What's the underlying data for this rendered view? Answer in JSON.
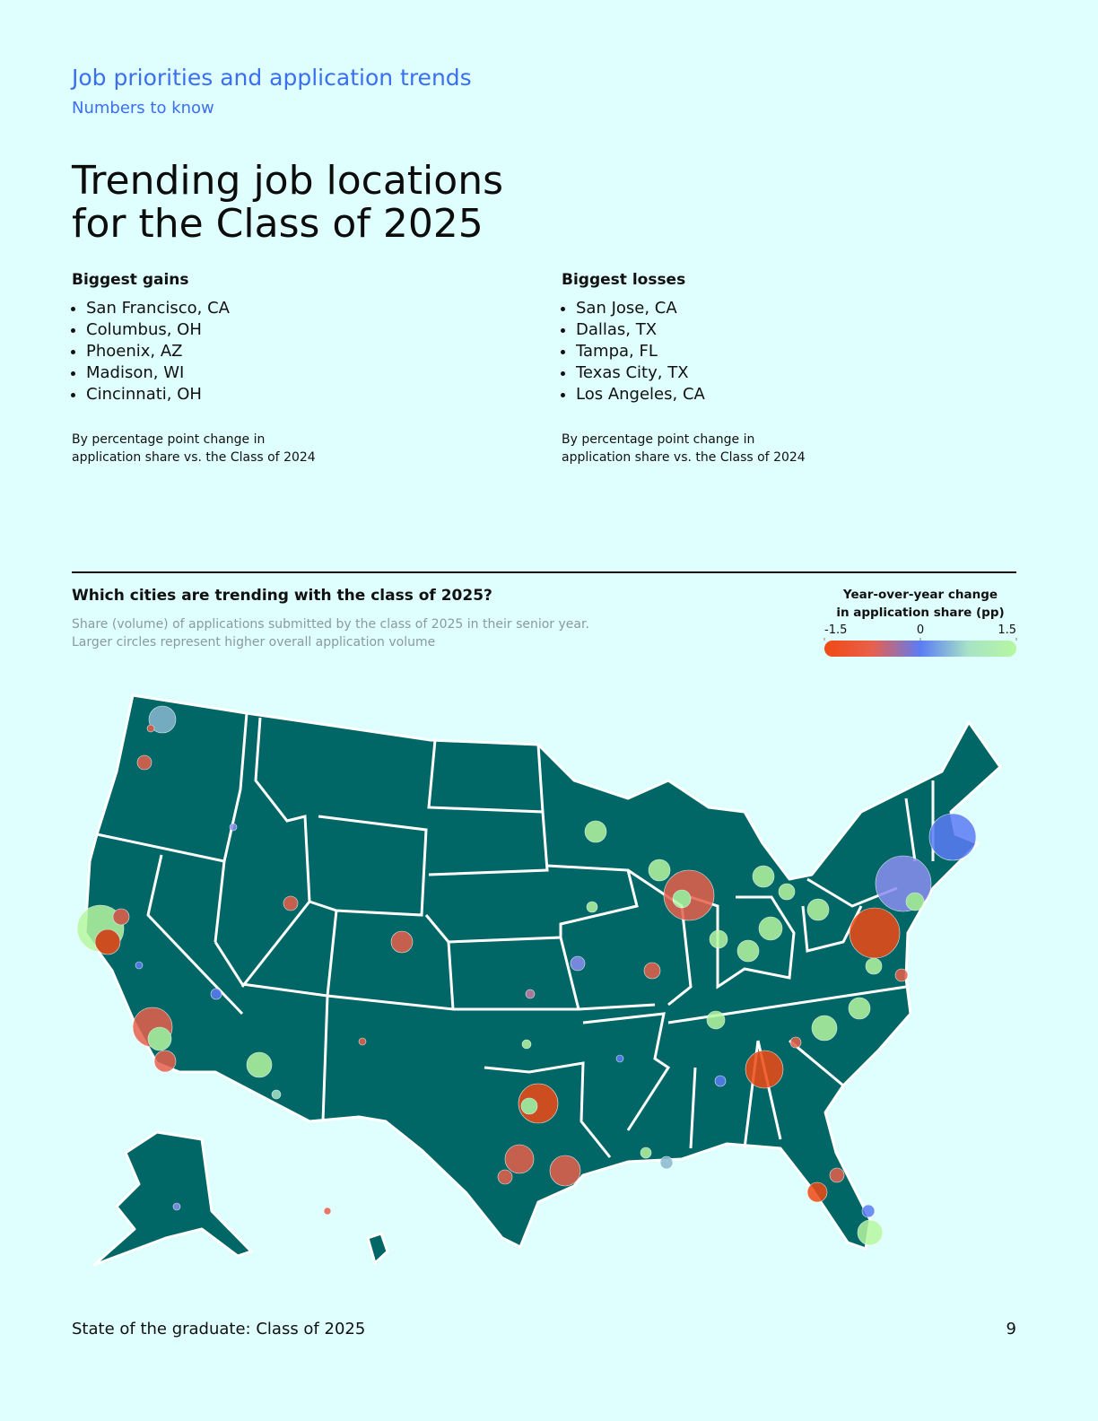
{
  "header": {
    "section": "Job priorities and application trends",
    "subsection": "Numbers to know"
  },
  "title": [
    "Trending job locations",
    "for the Class of 2025"
  ],
  "gains": {
    "heading": "Biggest gains",
    "items": [
      "San Francisco, CA",
      "Columbus, OH",
      "Phoenix, AZ",
      "Madison, WI",
      "Cincinnati, OH"
    ],
    "note": [
      "By percentage point change in",
      "application share vs. the Class of 2024"
    ]
  },
  "losses": {
    "heading": "Biggest losses",
    "items": [
      "San Jose, CA",
      "Dallas, TX",
      "Tampa, FL",
      "Texas City, TX",
      "Los Angeles, CA"
    ],
    "note": [
      "By percentage point change in",
      "application share vs. the Class of 2024"
    ]
  },
  "map": {
    "title": "Which cities are trending with the class of 2025?",
    "subtitle": [
      "Share (volume) of applications submitted by the class of 2025 in their senior year.",
      "Larger circles represent higher overall application volume"
    ],
    "legend": {
      "title": [
        "Year-over-year change",
        "in application share (pp)"
      ],
      "lim": [
        -1.5,
        1.5
      ],
      "ticks": [
        -1.5,
        0,
        1.5
      ],
      "colors": [
        "#f04a14",
        "#e8604c",
        "#5b7cf5",
        "#a7e3c6",
        "#b6f7a0"
      ]
    }
  },
  "footer": {
    "text": "State of the graduate: Class of 2025",
    "page": "9"
  }
}
